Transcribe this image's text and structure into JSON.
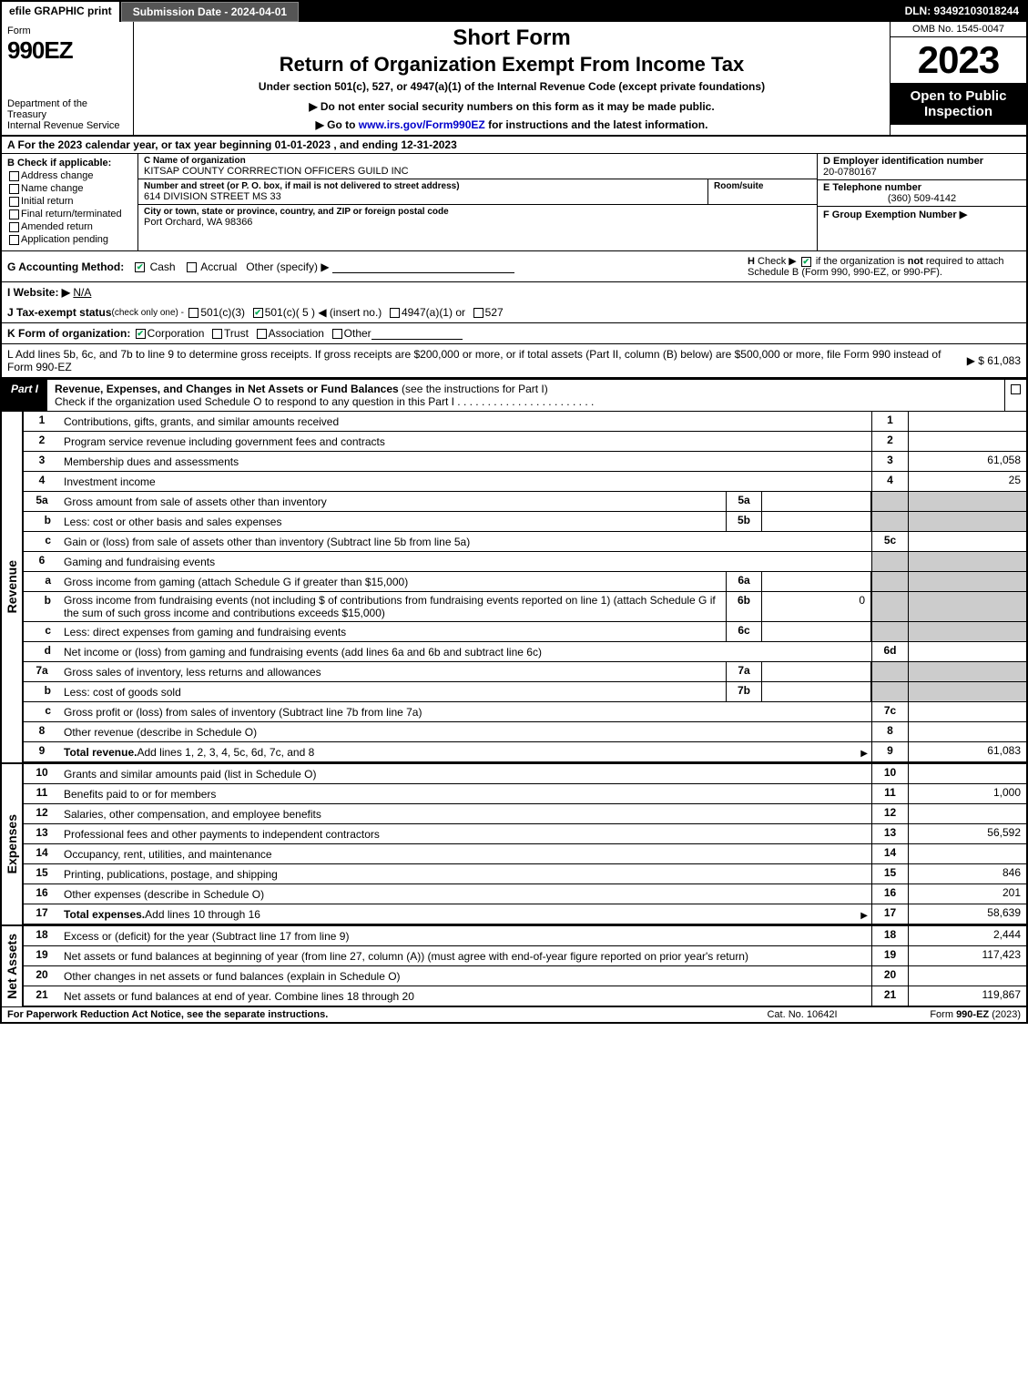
{
  "topbar": {
    "efile": "efile GRAPHIC print",
    "submission": "Submission Date - 2024-04-01",
    "dln": "DLN: 93492103018244"
  },
  "header": {
    "form_label": "Form",
    "form_number": "990EZ",
    "dept": "Department of the Treasury\nInternal Revenue Service",
    "short_form": "Short Form",
    "title": "Return of Organization Exempt From Income Tax",
    "subtitle": "Under section 501(c), 527, or 4947(a)(1) of the Internal Revenue Code (except private foundations)",
    "notice1": "▶ Do not enter social security numbers on this form as it may be made public.",
    "notice2_pre": "▶ Go to ",
    "notice2_link": "www.irs.gov/Form990EZ",
    "notice2_post": " for instructions and the latest information.",
    "omb": "OMB No. 1545-0047",
    "year": "2023",
    "inspection": "Open to Public Inspection"
  },
  "lineA": "A  For the 2023 calendar year, or tax year beginning 01-01-2023  , and ending 12-31-2023",
  "sectionB": {
    "label": "B  Check if applicable:",
    "options": [
      "Address change",
      "Name change",
      "Initial return",
      "Final return/terminated",
      "Amended return",
      "Application pending"
    ]
  },
  "sectionC": {
    "name_label": "C Name of organization",
    "name": "KITSAP COUNTY CORRRECTION OFFICERS GUILD INC",
    "addr_label": "Number and street (or P. O. box, if mail is not delivered to street address)",
    "room_label": "Room/suite",
    "addr": "614 DIVISION STREET MS 33",
    "city_label": "City or town, state or province, country, and ZIP or foreign postal code",
    "city": "Port Orchard, WA   98366"
  },
  "sectionD": {
    "ein_label": "D Employer identification number",
    "ein": "20-0780167",
    "phone_label": "E Telephone number",
    "phone": "(360) 509-4142",
    "group_label": "F Group Exemption Number  ▶"
  },
  "lineG": {
    "label": "G Accounting Method:",
    "cash": "Cash",
    "accrual": "Accrual",
    "other": "Other (specify) ▶"
  },
  "lineH": {
    "label": "H",
    "text": "Check ▶      if the organization is not required to attach Schedule B (Form 990, 990-EZ, or 990-PF)."
  },
  "lineI": {
    "label": "I Website: ▶",
    "value": "N/A"
  },
  "lineJ": {
    "label": "J Tax-exempt status",
    "note": "(check only one) -",
    "opts": "501(c)(3)     501(c)( 5 ) ◀ (insert no.)    4947(a)(1) or    527"
  },
  "lineK": {
    "label": "K Form of organization:",
    "opts": "Corporation    Trust    Association    Other"
  },
  "lineL": {
    "text": "L Add lines 5b, 6c, and 7b to line 9 to determine gross receipts. If gross receipts are $200,000 or more, or if total assets (Part II, column (B) below) are $500,000 or more, file Form 990 instead of Form 990-EZ",
    "amount": "▶ $ 61,083"
  },
  "partI": {
    "tag": "Part I",
    "title": "Revenue, Expenses, and Changes in Net Assets or Fund Balances",
    "note": "(see the instructions for Part I)",
    "check_line": "Check if the organization used Schedule O to respond to any question in this Part I"
  },
  "section_labels": {
    "revenue": "Revenue",
    "expenses": "Expenses",
    "netassets": "Net Assets"
  },
  "revenue_lines": [
    {
      "no": "1",
      "desc": "Contributions, gifts, grants, and similar amounts received",
      "box": "1",
      "val": ""
    },
    {
      "no": "2",
      "desc": "Program service revenue including government fees and contracts",
      "box": "2",
      "val": ""
    },
    {
      "no": "3",
      "desc": "Membership dues and assessments",
      "box": "3",
      "val": "61,058"
    },
    {
      "no": "4",
      "desc": "Investment income",
      "box": "4",
      "val": "25"
    },
    {
      "no": "5a",
      "desc": "Gross amount from sale of assets other than inventory",
      "inbox": "5a",
      "inval": "",
      "box": "",
      "val": "",
      "grey": true
    },
    {
      "no": "b",
      "sub": true,
      "desc": "Less: cost or other basis and sales expenses",
      "inbox": "5b",
      "inval": "",
      "grey": true
    },
    {
      "no": "c",
      "sub": true,
      "desc": "Gain or (loss) from sale of assets other than inventory (Subtract line 5b from line 5a)",
      "box": "5c",
      "val": ""
    },
    {
      "no": "6",
      "desc": "Gaming and fundraising events",
      "grey": true,
      "header": true
    },
    {
      "no": "a",
      "sub": true,
      "desc": "Gross income from gaming (attach Schedule G if greater than $15,000)",
      "inbox": "6a",
      "inval": "",
      "grey": true
    },
    {
      "no": "b",
      "sub": true,
      "desc": "Gross income from fundraising events (not including $                       of contributions from fundraising events reported on line 1) (attach Schedule G if the sum of such gross income and contributions exceeds $15,000)",
      "inbox": "6b",
      "inval": "0",
      "grey": true
    },
    {
      "no": "c",
      "sub": true,
      "desc": "Less: direct expenses from gaming and fundraising events",
      "inbox": "6c",
      "inval": "",
      "grey": true
    },
    {
      "no": "d",
      "sub": true,
      "desc": "Net income or (loss) from gaming and fundraising events (add lines 6a and 6b and subtract line 6c)",
      "box": "6d",
      "val": ""
    },
    {
      "no": "7a",
      "desc": "Gross sales of inventory, less returns and allowances",
      "inbox": "7a",
      "inval": "",
      "grey": true
    },
    {
      "no": "b",
      "sub": true,
      "desc": "Less: cost of goods sold",
      "inbox": "7b",
      "inval": "",
      "grey": true
    },
    {
      "no": "c",
      "sub": true,
      "desc": "Gross profit or (loss) from sales of inventory (Subtract line 7b from line 7a)",
      "box": "7c",
      "val": ""
    },
    {
      "no": "8",
      "desc": "Other revenue (describe in Schedule O)",
      "box": "8",
      "val": ""
    },
    {
      "no": "9",
      "desc": "Total revenue. Add lines 1, 2, 3, 4, 5c, 6d, 7c, and 8",
      "bold": true,
      "arrow": true,
      "box": "9",
      "val": "61,083"
    }
  ],
  "expense_lines": [
    {
      "no": "10",
      "desc": "Grants and similar amounts paid (list in Schedule O)",
      "box": "10",
      "val": ""
    },
    {
      "no": "11",
      "desc": "Benefits paid to or for members",
      "box": "11",
      "val": "1,000"
    },
    {
      "no": "12",
      "desc": "Salaries, other compensation, and employee benefits",
      "box": "12",
      "val": ""
    },
    {
      "no": "13",
      "desc": "Professional fees and other payments to independent contractors",
      "box": "13",
      "val": "56,592"
    },
    {
      "no": "14",
      "desc": "Occupancy, rent, utilities, and maintenance",
      "box": "14",
      "val": ""
    },
    {
      "no": "15",
      "desc": "Printing, publications, postage, and shipping",
      "box": "15",
      "val": "846"
    },
    {
      "no": "16",
      "desc": "Other expenses (describe in Schedule O)",
      "box": "16",
      "val": "201"
    },
    {
      "no": "17",
      "desc": "Total expenses. Add lines 10 through 16",
      "bold": true,
      "arrow": true,
      "box": "17",
      "val": "58,639"
    }
  ],
  "netasset_lines": [
    {
      "no": "18",
      "desc": "Excess or (deficit) for the year (Subtract line 17 from line 9)",
      "box": "18",
      "val": "2,444"
    },
    {
      "no": "19",
      "desc": "Net assets or fund balances at beginning of year (from line 27, column (A)) (must agree with end-of-year figure reported on prior year's return)",
      "box": "19",
      "val": "117,423"
    },
    {
      "no": "20",
      "desc": "Other changes in net assets or fund balances (explain in Schedule O)",
      "box": "20",
      "val": ""
    },
    {
      "no": "21",
      "desc": "Net assets or fund balances at end of year. Combine lines 18 through 20",
      "box": "21",
      "val": "119,867"
    }
  ],
  "footer": {
    "left": "For Paperwork Reduction Act Notice, see the separate instructions.",
    "mid": "Cat. No. 10642I",
    "right_pre": "Form ",
    "right_bold": "990-EZ",
    "right_post": " (2023)"
  },
  "colors": {
    "black": "#000000",
    "grey": "#cccccc",
    "link": "#0000cc",
    "check": "#00aa55"
  }
}
